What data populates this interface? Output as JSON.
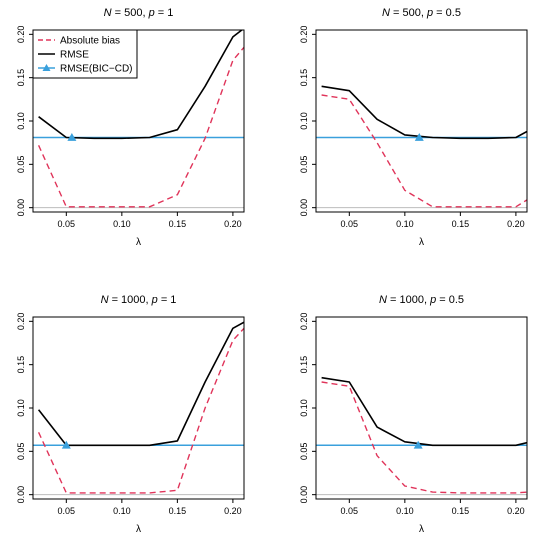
{
  "legend": {
    "position": "top-left",
    "entries": [
      {
        "label": "Absolute bias",
        "color": "#e0345a",
        "style": "dashed"
      },
      {
        "label": "RMSE",
        "color": "#000000",
        "style": "solid"
      },
      {
        "label": "RMSE(BIC−CD)",
        "color": "#3aa0dc",
        "style": "solid-triangle"
      }
    ]
  },
  "chart_data": [
    {
      "type": "line",
      "title_parts": [
        "N",
        " = 500, ",
        "p",
        " = 1"
      ],
      "xlabel": "λ",
      "xlim": [
        0.02,
        0.21
      ],
      "ylim": [
        -0.005,
        0.205
      ],
      "xticks": [
        0.05,
        0.1,
        0.15,
        0.2
      ],
      "xtick_labels": [
        "0.05",
        "0.10",
        "0.15",
        "0.20"
      ],
      "yticks": [
        0.0,
        0.05,
        0.1,
        0.15,
        0.2
      ],
      "ytick_labels": [
        "0.00",
        "0.05",
        "0.10",
        "0.15",
        "0.20"
      ],
      "grid": false,
      "zero_line": 0,
      "x": [
        0.025,
        0.05,
        0.075,
        0.1,
        0.125,
        0.15,
        0.175,
        0.2,
        0.21
      ],
      "series": [
        {
          "name": "Absolute bias",
          "values": [
            0.072,
            0.001,
            0.001,
            0.001,
            0.001,
            0.015,
            0.08,
            0.17,
            0.185
          ]
        },
        {
          "name": "RMSE",
          "values": [
            0.105,
            0.081,
            0.08,
            0.08,
            0.081,
            0.09,
            0.14,
            0.197,
            0.207
          ]
        }
      ],
      "bic_cd": {
        "value": 0.081,
        "marker_x": 0.055
      }
    },
    {
      "type": "line",
      "title_parts": [
        "N",
        " = 500, ",
        "p",
        " = 0.5"
      ],
      "xlabel": "λ",
      "xlim": [
        0.02,
        0.21
      ],
      "ylim": [
        -0.005,
        0.205
      ],
      "xticks": [
        0.05,
        0.1,
        0.15,
        0.2
      ],
      "xtick_labels": [
        "0.05",
        "0.10",
        "0.15",
        "0.20"
      ],
      "yticks": [
        0.0,
        0.05,
        0.1,
        0.15,
        0.2
      ],
      "ytick_labels": [
        "0.00",
        "0.05",
        "0.10",
        "0.15",
        "0.20"
      ],
      "grid": false,
      "zero_line": 0,
      "x": [
        0.025,
        0.05,
        0.075,
        0.1,
        0.125,
        0.15,
        0.175,
        0.2,
        0.21
      ],
      "series": [
        {
          "name": "Absolute bias",
          "values": [
            0.13,
            0.125,
            0.075,
            0.02,
            0.001,
            0.001,
            0.001,
            0.001,
            0.009
          ]
        },
        {
          "name": "RMSE",
          "values": [
            0.14,
            0.135,
            0.102,
            0.084,
            0.081,
            0.08,
            0.08,
            0.081,
            0.088
          ]
        }
      ],
      "bic_cd": {
        "value": 0.081,
        "marker_x": 0.113
      }
    },
    {
      "type": "line",
      "title_parts": [
        "N",
        " = 1000, ",
        "p",
        " = 1"
      ],
      "xlabel": "λ",
      "xlim": [
        0.02,
        0.21
      ],
      "ylim": [
        -0.005,
        0.205
      ],
      "xticks": [
        0.05,
        0.1,
        0.15,
        0.2
      ],
      "xtick_labels": [
        "0.05",
        "0.10",
        "0.15",
        "0.20"
      ],
      "yticks": [
        0.0,
        0.05,
        0.1,
        0.15,
        0.2
      ],
      "ytick_labels": [
        "0.00",
        "0.05",
        "0.10",
        "0.15",
        "0.20"
      ],
      "grid": false,
      "zero_line": 0,
      "x": [
        0.025,
        0.05,
        0.075,
        0.1,
        0.125,
        0.15,
        0.175,
        0.2,
        0.21
      ],
      "series": [
        {
          "name": "Absolute bias",
          "values": [
            0.072,
            0.002,
            0.002,
            0.002,
            0.002,
            0.005,
            0.1,
            0.178,
            0.192
          ]
        },
        {
          "name": "RMSE",
          "values": [
            0.098,
            0.057,
            0.057,
            0.057,
            0.057,
            0.062,
            0.13,
            0.192,
            0.199
          ]
        }
      ],
      "bic_cd": {
        "value": 0.057,
        "marker_x": 0.05
      }
    },
    {
      "type": "line",
      "title_parts": [
        "N",
        " = 1000, ",
        "p",
        " = 0.5"
      ],
      "xlabel": "λ",
      "xlim": [
        0.02,
        0.21
      ],
      "ylim": [
        -0.005,
        0.205
      ],
      "xticks": [
        0.05,
        0.1,
        0.15,
        0.2
      ],
      "xtick_labels": [
        "0.05",
        "0.10",
        "0.15",
        "0.20"
      ],
      "yticks": [
        0.0,
        0.05,
        0.1,
        0.15,
        0.2
      ],
      "ytick_labels": [
        "0.00",
        "0.05",
        "0.10",
        "0.15",
        "0.20"
      ],
      "grid": false,
      "zero_line": 0,
      "x": [
        0.025,
        0.05,
        0.075,
        0.1,
        0.125,
        0.15,
        0.175,
        0.2,
        0.21
      ],
      "series": [
        {
          "name": "Absolute bias",
          "values": [
            0.13,
            0.125,
            0.045,
            0.01,
            0.003,
            0.002,
            0.002,
            0.002,
            0.003
          ]
        },
        {
          "name": "RMSE",
          "values": [
            0.135,
            0.13,
            0.078,
            0.061,
            0.057,
            0.057,
            0.057,
            0.057,
            0.06
          ]
        }
      ],
      "bic_cd": {
        "value": 0.057,
        "marker_x": 0.112
      }
    }
  ]
}
